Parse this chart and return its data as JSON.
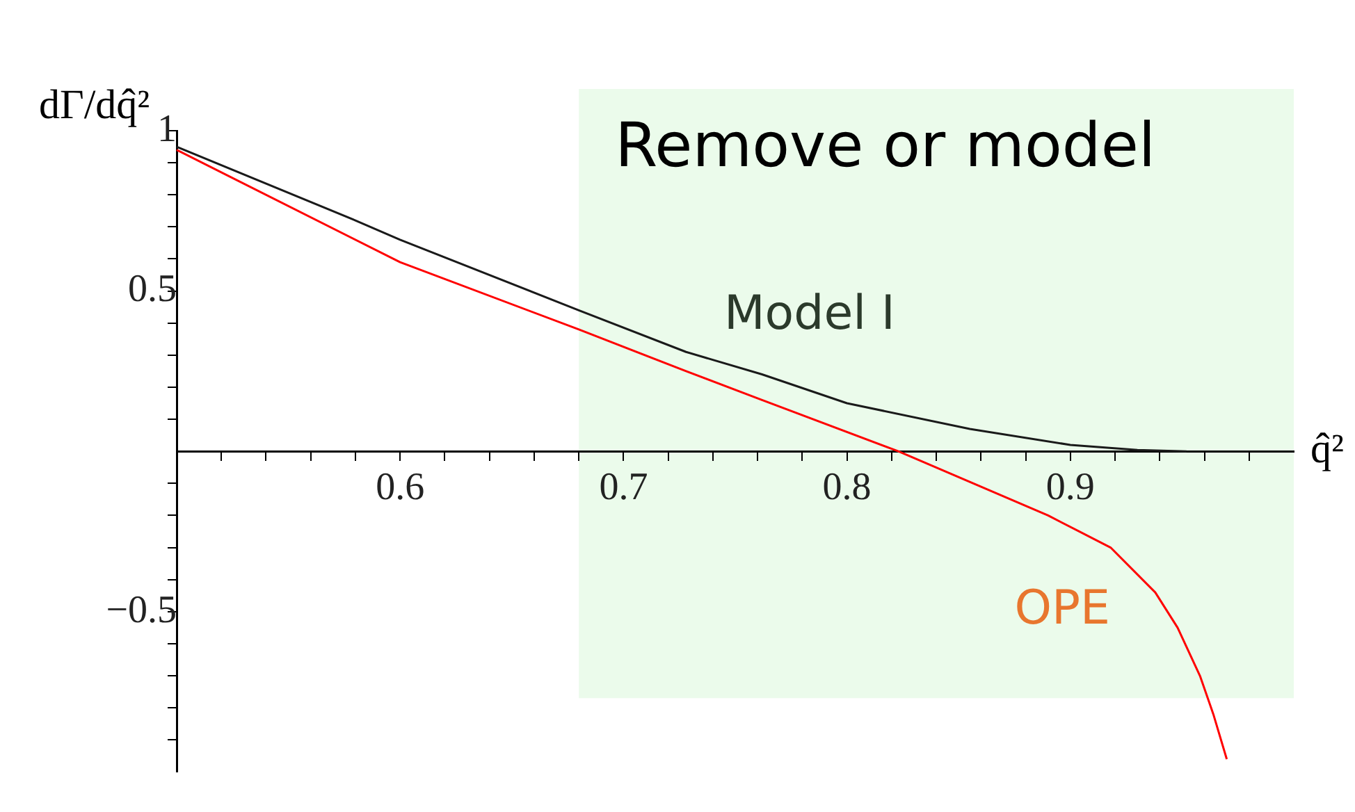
{
  "chart_data": {
    "type": "line",
    "ylabel": "dΓ/dq̂²",
    "xlabel": "q̂²",
    "xlim": [
      0.5,
      1.0
    ],
    "ylim": [
      -1,
      1
    ],
    "xticks": [
      {
        "value": 0.52,
        "label": null
      },
      {
        "value": 0.54,
        "label": null
      },
      {
        "value": 0.56,
        "label": null
      },
      {
        "value": 0.58,
        "label": null
      },
      0.6,
      {
        "value": 0.62,
        "label": null
      },
      {
        "value": 0.64,
        "label": null
      },
      {
        "value": 0.66,
        "label": null
      },
      {
        "value": 0.68,
        "label": null
      },
      0.7,
      {
        "value": 0.72,
        "label": null
      },
      {
        "value": 0.74,
        "label": null
      },
      {
        "value": 0.76,
        "label": null
      },
      {
        "value": 0.78,
        "label": null
      },
      0.8,
      {
        "value": 0.82,
        "label": null
      },
      {
        "value": 0.84,
        "label": null
      },
      {
        "value": 0.86,
        "label": null
      },
      {
        "value": 0.88,
        "label": null
      },
      0.9,
      {
        "value": 0.92,
        "label": null
      },
      {
        "value": 0.94,
        "label": null
      },
      {
        "value": 0.96,
        "label": null
      },
      {
        "value": 0.98,
        "label": null
      }
    ],
    "yticks": [
      {
        "value": -0.9,
        "label": null
      },
      {
        "value": -0.8,
        "label": null
      },
      {
        "value": -0.7,
        "label": null
      },
      {
        "value": -0.6,
        "label": null
      },
      {
        "value": -0.5,
        "label": "−0.5"
      },
      {
        "value": -0.4,
        "label": null
      },
      {
        "value": -0.3,
        "label": null
      },
      {
        "value": -0.2,
        "label": null
      },
      {
        "value": -0.1,
        "label": null
      },
      {
        "value": 0.1,
        "label": null
      },
      {
        "value": 0.2,
        "label": null
      },
      {
        "value": 0.3,
        "label": null
      },
      {
        "value": 0.4,
        "label": null
      },
      0.5,
      {
        "value": 0.6,
        "label": null
      },
      {
        "value": 0.7,
        "label": null
      },
      {
        "value": 0.8,
        "label": null
      },
      {
        "value": 0.9,
        "label": null
      },
      1
    ],
    "series": [
      {
        "name": "Model I",
        "color": "#1a1a1a",
        "x": [
          0.5,
          0.58,
          0.6,
          0.68,
          0.728,
          0.762,
          0.8,
          0.855,
          0.9,
          0.93,
          0.952
        ],
        "values": [
          0.95,
          0.72,
          0.66,
          0.44,
          0.31,
          0.24,
          0.15,
          0.07,
          0.02,
          0.004,
          0
        ]
      },
      {
        "name": "OPE",
        "color": "#ff0000",
        "x": [
          0.5,
          0.6,
          0.68,
          0.728,
          0.762,
          0.823,
          0.89,
          0.918,
          0.938,
          0.948,
          0.958,
          0.964,
          0.97
        ],
        "values": [
          0.94,
          0.59,
          0.38,
          0.25,
          0.16,
          0,
          -0.2,
          -0.3,
          -0.44,
          -0.55,
          -0.7,
          -0.82,
          -0.96
        ]
      }
    ],
    "bands": [
      {
        "axis": "x",
        "from": 0.68,
        "to": 1.0,
        "label": "Remove or model",
        "color": "#ebfbeb"
      }
    ],
    "grid": false,
    "legend": false,
    "marker": "none",
    "line_style": "solid"
  }
}
